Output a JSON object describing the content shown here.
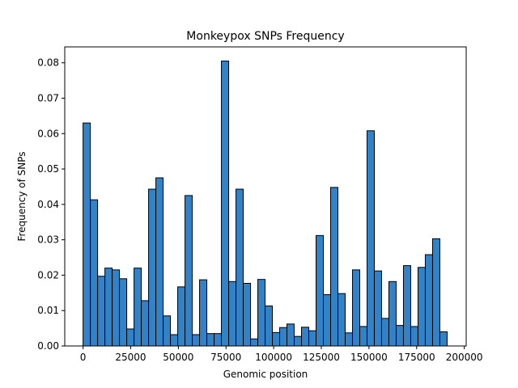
{
  "chart_data": {
    "type": "bar",
    "title": "Monkeypox SNPs Frequency",
    "xlabel": "Genomic position",
    "ylabel": "Frequency of SNPs",
    "xlim": [
      -9600,
      201000
    ],
    "ylim": [
      0,
      0.0845
    ],
    "grid": false,
    "bar_color": "#3182c6",
    "edge_color": "#000000",
    "x_ticks": [
      {
        "value": 0,
        "label": "0"
      },
      {
        "value": 25000,
        "label": "25000"
      },
      {
        "value": 50000,
        "label": "50000"
      },
      {
        "value": 75000,
        "label": "75000"
      },
      {
        "value": 100000,
        "label": "100000"
      },
      {
        "value": 125000,
        "label": "125000"
      },
      {
        "value": 150000,
        "label": "150000"
      },
      {
        "value": 175000,
        "label": "175000"
      },
      {
        "value": 200000,
        "label": "200000"
      }
    ],
    "y_ticks": [
      {
        "value": 0,
        "label": "0.00"
      },
      {
        "value": 0.01,
        "label": "0.01"
      },
      {
        "value": 0.02,
        "label": "0.02"
      },
      {
        "value": 0.03,
        "label": "0.03"
      },
      {
        "value": 0.04,
        "label": "0.04"
      },
      {
        "value": 0.05,
        "label": "0.05"
      },
      {
        "value": 0.06,
        "label": "0.06"
      },
      {
        "value": 0.07,
        "label": "0.07"
      },
      {
        "value": 0.08,
        "label": "0.08"
      }
    ],
    "bin_start": 0,
    "bin_width": 3820,
    "values": [
      0.063,
      0.0413,
      0.0197,
      0.022,
      0.0215,
      0.019,
      0.0048,
      0.022,
      0.0128,
      0.0443,
      0.0475,
      0.0085,
      0.0032,
      0.0167,
      0.0425,
      0.0032,
      0.0187,
      0.0035,
      0.0035,
      0.0805,
      0.0182,
      0.0443,
      0.0177,
      0.002,
      0.0188,
      0.0113,
      0.0038,
      0.0052,
      0.0062,
      0.0027,
      0.0053,
      0.0043,
      0.0312,
      0.0145,
      0.0448,
      0.0148,
      0.0037,
      0.0215,
      0.0055,
      0.0608,
      0.0212,
      0.0078,
      0.0182,
      0.0058,
      0.0227,
      0.0055,
      0.0222,
      0.0258,
      0.0303,
      0.004
    ]
  }
}
